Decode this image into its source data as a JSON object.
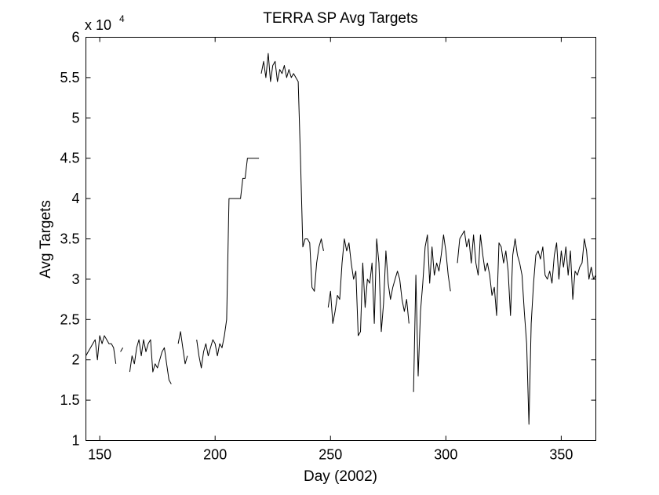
{
  "chart_data": {
    "type": "line",
    "title": "TERRA SP Avg Targets",
    "xlabel": "Day (2002)",
    "ylabel": "Avg Targets",
    "y_multiplier_label": "x 10",
    "y_multiplier_exponent": "4",
    "xlim": [
      144,
      365
    ],
    "ylim": [
      1,
      6
    ],
    "xticks": [
      150,
      200,
      250,
      300,
      350
    ],
    "yticks": [
      1,
      1.5,
      2,
      2.5,
      3,
      3.5,
      4,
      4.5,
      5,
      5.5,
      6
    ],
    "ytick_labels": [
      "1",
      "1.5",
      "2",
      "2.5",
      "3",
      "3.5",
      "4",
      "4.5",
      "5",
      "5.5",
      "6"
    ],
    "grid": false,
    "line_color": "#000000",
    "series": [
      {
        "segments": [
          [
            [
              144,
              2.05
            ],
            [
              145,
              2.1
            ],
            [
              146,
              2.15
            ],
            [
              147,
              2.2
            ],
            [
              148,
              2.25
            ],
            [
              149,
              2.0
            ],
            [
              150,
              2.3
            ],
            [
              151,
              2.2
            ],
            [
              152,
              2.3
            ],
            [
              153,
              2.25
            ],
            [
              154,
              2.2
            ],
            [
              155,
              2.2
            ],
            [
              156,
              2.15
            ],
            [
              157,
              1.95
            ]
          ],
          [
            [
              159,
              2.1
            ],
            [
              160,
              2.15
            ]
          ],
          [
            [
              163,
              1.85
            ],
            [
              164,
              2.05
            ],
            [
              165,
              1.95
            ],
            [
              166,
              2.15
            ],
            [
              167,
              2.25
            ],
            [
              168,
              2.05
            ],
            [
              169,
              2.25
            ],
            [
              170,
              2.1
            ],
            [
              171,
              2.2
            ],
            [
              172,
              2.25
            ],
            [
              173,
              1.85
            ],
            [
              174,
              1.95
            ],
            [
              175,
              1.9
            ],
            [
              176,
              2.0
            ],
            [
              177,
              2.1
            ],
            [
              178,
              2.15
            ],
            [
              179,
              1.95
            ],
            [
              180,
              1.75
            ],
            [
              181,
              1.7
            ]
          ],
          [
            [
              184,
              2.2
            ],
            [
              185,
              2.35
            ],
            [
              186,
              2.15
            ],
            [
              187,
              1.95
            ],
            [
              188,
              2.05
            ]
          ],
          [
            [
              192,
              2.25
            ],
            [
              193,
              2.05
            ],
            [
              194,
              1.9
            ],
            [
              195,
              2.1
            ],
            [
              196,
              2.2
            ],
            [
              197,
              2.05
            ],
            [
              198,
              2.15
            ],
            [
              199,
              2.25
            ],
            [
              200,
              2.2
            ],
            [
              201,
              2.05
            ],
            [
              202,
              2.2
            ],
            [
              203,
              2.15
            ],
            [
              204,
              2.3
            ],
            [
              205,
              2.5
            ],
            [
              206,
              4.0
            ],
            [
              207,
              4.0
            ],
            [
              208,
              4.0
            ],
            [
              209,
              4.0
            ],
            [
              210,
              4.0
            ],
            [
              211,
              4.0
            ],
            [
              212,
              4.25
            ],
            [
              213,
              4.25
            ],
            [
              214,
              4.5
            ],
            [
              215,
              4.5
            ],
            [
              216,
              4.5
            ],
            [
              217,
              4.5
            ],
            [
              218,
              4.5
            ],
            [
              219,
              4.5
            ]
          ],
          [
            [
              220,
              5.55
            ],
            [
              221,
              5.7
            ],
            [
              222,
              5.5
            ],
            [
              223,
              5.8
            ],
            [
              224,
              5.45
            ],
            [
              225,
              5.65
            ],
            [
              226,
              5.7
            ],
            [
              227,
              5.45
            ],
            [
              228,
              5.6
            ],
            [
              229,
              5.55
            ],
            [
              230,
              5.65
            ],
            [
              231,
              5.5
            ],
            [
              232,
              5.6
            ],
            [
              233,
              5.5
            ],
            [
              234,
              5.55
            ],
            [
              235,
              5.5
            ],
            [
              236,
              5.45
            ],
            [
              237,
              4.5
            ],
            [
              238,
              3.4
            ],
            [
              239,
              3.5
            ],
            [
              240,
              3.5
            ],
            [
              241,
              3.45
            ],
            [
              242,
              2.9
            ],
            [
              243,
              2.85
            ],
            [
              244,
              3.2
            ],
            [
              245,
              3.4
            ],
            [
              246,
              3.5
            ],
            [
              247,
              3.35
            ]
          ],
          [
            [
              249,
              2.65
            ],
            [
              250,
              2.85
            ],
            [
              251,
              2.45
            ],
            [
              252,
              2.6
            ],
            [
              253,
              2.8
            ],
            [
              254,
              2.75
            ],
            [
              255,
              3.2
            ],
            [
              256,
              3.5
            ],
            [
              257,
              3.35
            ],
            [
              258,
              3.45
            ],
            [
              259,
              3.2
            ],
            [
              260,
              3.0
            ],
            [
              261,
              3.1
            ],
            [
              262,
              2.3
            ],
            [
              263,
              2.35
            ],
            [
              264,
              3.2
            ],
            [
              265,
              2.65
            ],
            [
              266,
              3.0
            ],
            [
              267,
              2.95
            ],
            [
              268,
              3.2
            ],
            [
              269,
              2.45
            ],
            [
              270,
              3.5
            ],
            [
              271,
              3.2
            ],
            [
              272,
              2.35
            ],
            [
              273,
              2.7
            ],
            [
              274,
              3.35
            ],
            [
              275,
              2.95
            ],
            [
              276,
              2.75
            ],
            [
              277,
              2.9
            ],
            [
              278,
              3.0
            ],
            [
              279,
              3.1
            ],
            [
              280,
              3.0
            ],
            [
              281,
              2.75
            ],
            [
              282,
              2.6
            ],
            [
              283,
              2.75
            ],
            [
              284,
              2.45
            ]
          ],
          [
            [
              286,
              1.6
            ],
            [
              287,
              3.05
            ],
            [
              288,
              1.8
            ],
            [
              289,
              2.6
            ],
            [
              290,
              2.95
            ],
            [
              291,
              3.4
            ],
            [
              292,
              3.55
            ],
            [
              293,
              2.95
            ],
            [
              294,
              3.4
            ],
            [
              295,
              3.05
            ],
            [
              296,
              3.2
            ],
            [
              297,
              3.1
            ],
            [
              298,
              3.3
            ],
            [
              299,
              3.55
            ],
            [
              300,
              3.35
            ],
            [
              301,
              3.05
            ],
            [
              302,
              2.85
            ]
          ],
          [
            [
              305,
              3.2
            ],
            [
              306,
              3.5
            ],
            [
              307,
              3.55
            ],
            [
              308,
              3.6
            ],
            [
              309,
              3.4
            ],
            [
              310,
              3.5
            ],
            [
              311,
              3.2
            ],
            [
              312,
              3.55
            ],
            [
              313,
              3.2
            ],
            [
              314,
              3.05
            ],
            [
              315,
              3.55
            ],
            [
              316,
              3.3
            ],
            [
              317,
              3.1
            ],
            [
              318,
              3.2
            ],
            [
              319,
              3.05
            ],
            [
              320,
              2.8
            ],
            [
              321,
              2.9
            ],
            [
              322,
              2.55
            ],
            [
              323,
              3.45
            ],
            [
              324,
              3.4
            ],
            [
              325,
              3.2
            ],
            [
              326,
              3.35
            ],
            [
              327,
              3.1
            ],
            [
              328,
              2.55
            ],
            [
              329,
              3.3
            ],
            [
              330,
              3.5
            ],
            [
              331,
              3.3
            ],
            [
              332,
              3.2
            ],
            [
              333,
              3.05
            ],
            [
              334,
              2.6
            ],
            [
              335,
              2.2
            ],
            [
              336,
              1.2
            ],
            [
              337,
              2.45
            ],
            [
              338,
              2.95
            ],
            [
              339,
              3.3
            ],
            [
              340,
              3.35
            ],
            [
              341,
              3.25
            ],
            [
              342,
              3.4
            ],
            [
              343,
              3.05
            ],
            [
              344,
              3.0
            ],
            [
              345,
              3.1
            ],
            [
              346,
              2.95
            ],
            [
              347,
              3.3
            ],
            [
              348,
              3.45
            ],
            [
              349,
              3.0
            ],
            [
              350,
              3.35
            ],
            [
              351,
              3.15
            ],
            [
              352,
              3.4
            ],
            [
              353,
              3.05
            ],
            [
              354,
              3.35
            ],
            [
              355,
              2.75
            ],
            [
              356,
              3.1
            ],
            [
              357,
              3.05
            ],
            [
              358,
              3.15
            ],
            [
              359,
              3.2
            ],
            [
              360,
              3.5
            ],
            [
              361,
              3.35
            ],
            [
              362,
              3.0
            ],
            [
              363,
              3.15
            ],
            [
              364,
              3.0
            ],
            [
              365,
              3.05
            ]
          ]
        ]
      }
    ]
  }
}
